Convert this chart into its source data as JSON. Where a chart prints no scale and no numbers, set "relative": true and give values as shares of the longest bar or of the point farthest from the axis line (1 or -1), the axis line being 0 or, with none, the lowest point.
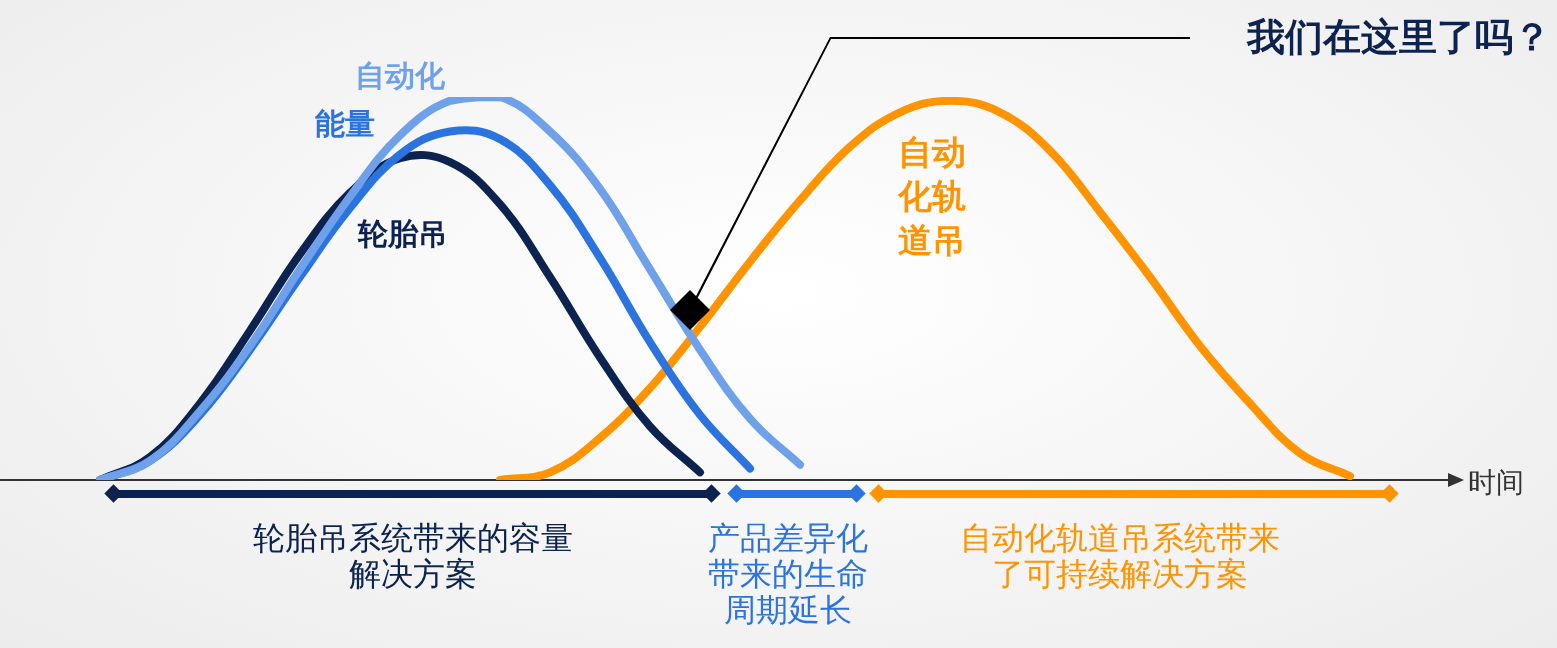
{
  "chart_data": {
    "type": "line",
    "relative": true,
    "xlabel": "时间",
    "legend": false,
    "marker": "none",
    "categories": [
      null,
      null,
      null,
      null,
      null,
      null,
      null,
      null,
      null,
      null,
      null,
      null,
      null,
      null,
      null,
      null,
      null,
      null,
      null,
      null,
      null,
      null,
      null,
      null,
      null,
      null,
      null,
      null,
      null,
      null
    ],
    "series": [
      {
        "name": "自动化",
        "color": "#6fa0ea",
        "values": [
          null,
          null,
          0,
          0.05,
          0.18,
          0.35,
          0.55,
          0.74,
          0.9,
          0.99,
          1,
          0.91,
          0.76,
          0.55,
          0.34,
          0.16,
          0.04,
          null,
          null,
          null,
          null,
          null,
          null,
          null,
          null,
          null,
          null,
          null,
          null,
          null
        ]
      },
      {
        "name": "能量",
        "color": "#2b74e0",
        "values": [
          null,
          null,
          0,
          0.05,
          0.17,
          0.34,
          0.53,
          0.71,
          0.85,
          0.91,
          0.89,
          0.77,
          0.58,
          0.36,
          0.17,
          0.03,
          null,
          null,
          null,
          null,
          null,
          null,
          null,
          null,
          null,
          null,
          null,
          null,
          null,
          null
        ]
      },
      {
        "name": "轮胎吊",
        "color": "#0c2350",
        "values": [
          null,
          null,
          0,
          0.06,
          0.2,
          0.39,
          0.59,
          0.75,
          0.84,
          0.83,
          0.72,
          0.53,
          0.32,
          0.14,
          0.02,
          null,
          null,
          null,
          null,
          null,
          null,
          null,
          null,
          null,
          null,
          null,
          null,
          null,
          null,
          null
        ]
      },
      {
        "name": "自动化轨道吊",
        "color": "#ff9400",
        "values": [
          null,
          null,
          null,
          null,
          null,
          null,
          null,
          null,
          null,
          null,
          0,
          0.02,
          0.11,
          0.24,
          0.4,
          0.57,
          0.73,
          0.87,
          0.96,
          0.99,
          0.96,
          0.86,
          0.7,
          0.53,
          0.35,
          0.2,
          0.07,
          0.01,
          null,
          null
        ]
      }
    ],
    "annotations": [
      "我们在这里了吗？",
      "轮胎吊系统带来的容量解决方案",
      "产品差异化带来的生命周期延长",
      "自动化轨道吊系统带来了可持续解决方案"
    ]
  }
}
